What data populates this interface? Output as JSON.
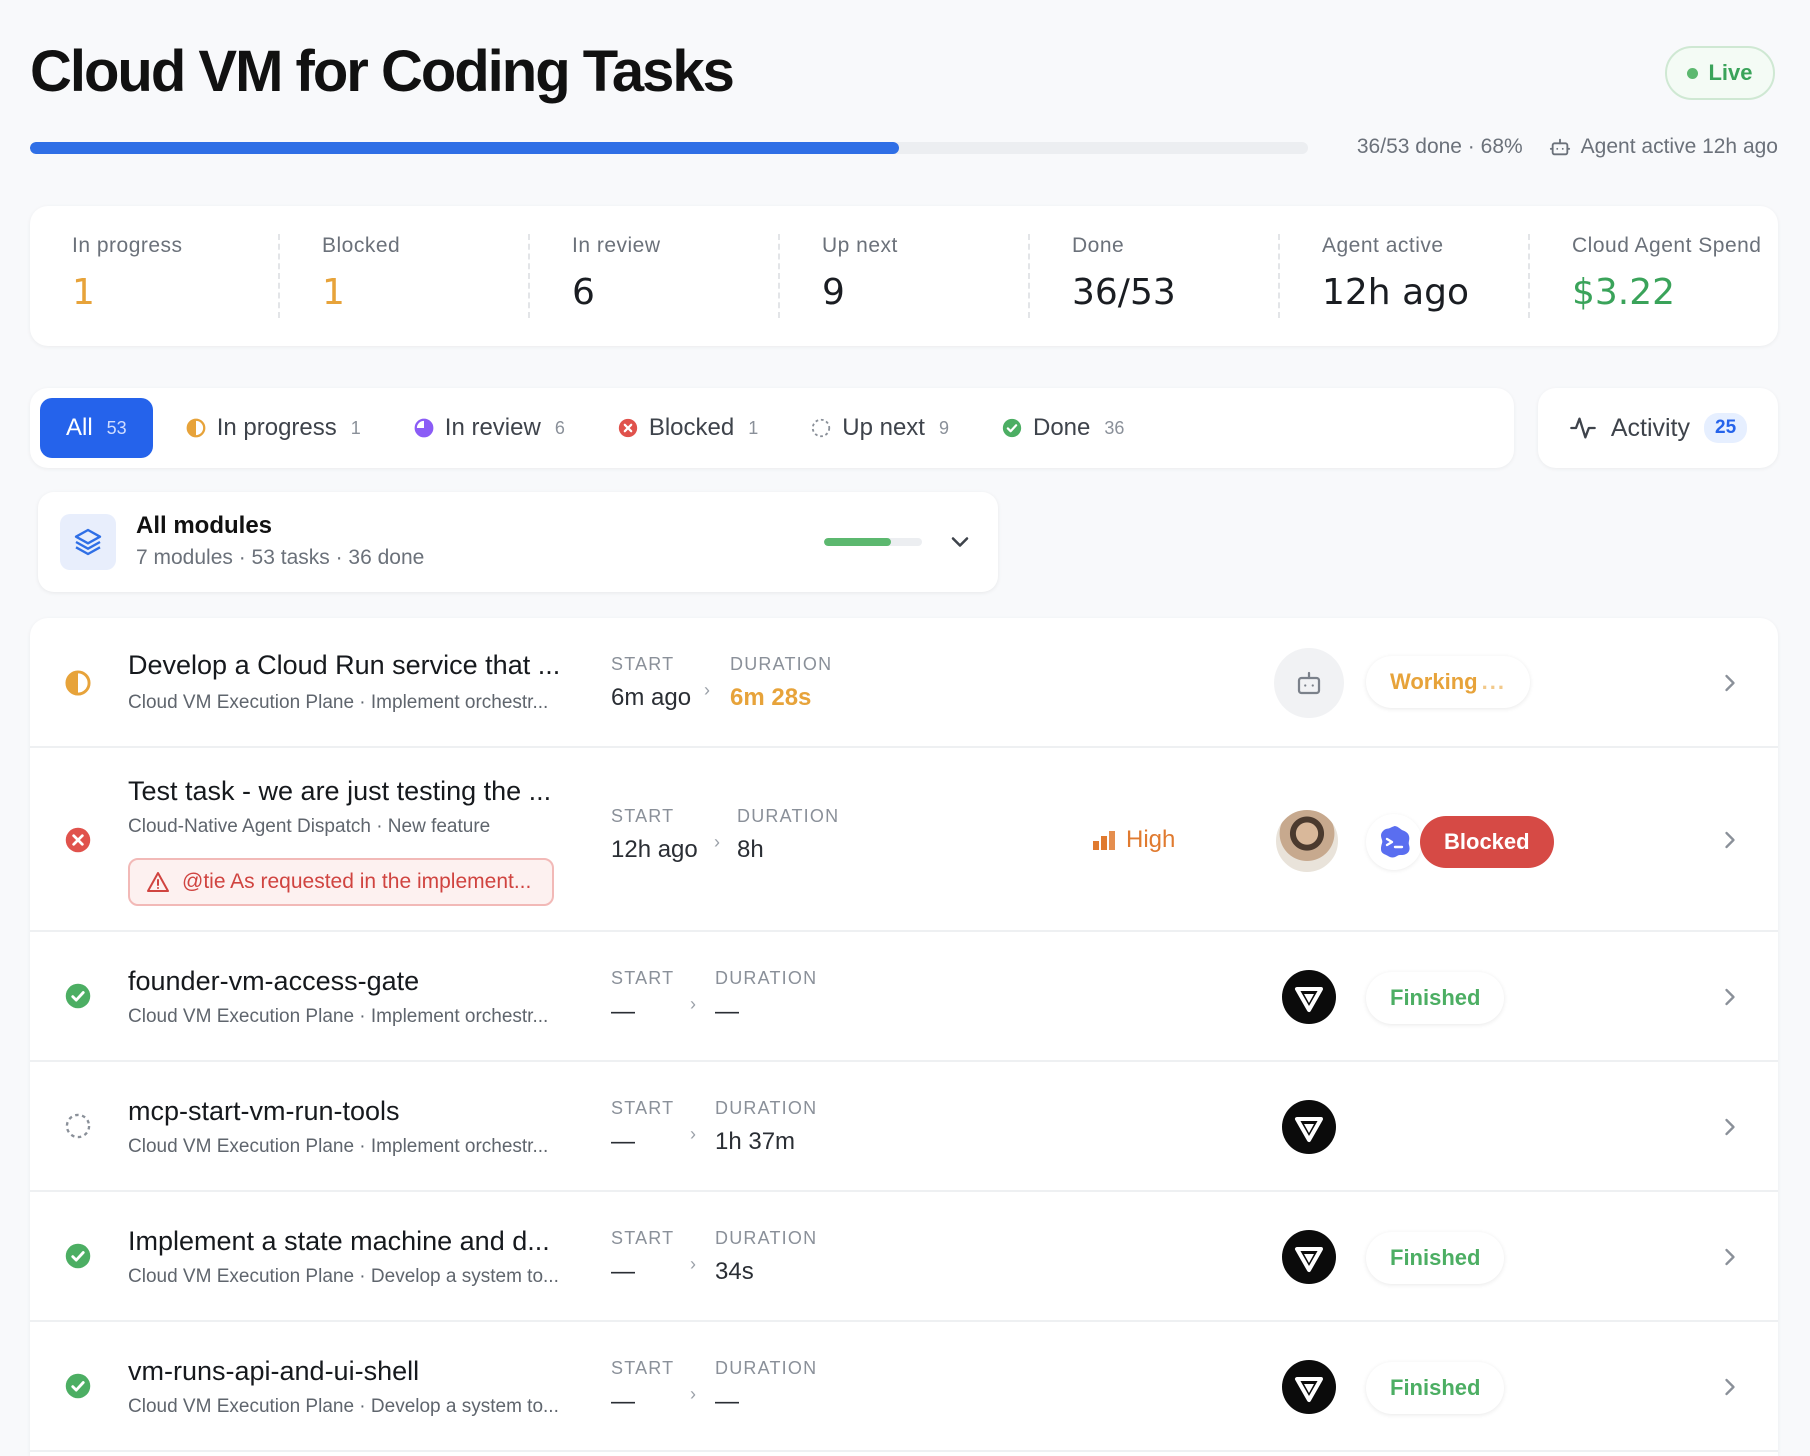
{
  "header": {
    "title": "Cloud VM for Coding Tasks",
    "live_label": "Live",
    "progress_fraction": 0.68,
    "progress_text": "36/53 done · 68%",
    "agent_text": "Agent active 12h ago"
  },
  "stats": [
    {
      "label": "In progress",
      "value": "1",
      "color": "#e7a33a"
    },
    {
      "label": "Blocked",
      "value": "1",
      "color": "#e7a33a"
    },
    {
      "label": "In review",
      "value": "6"
    },
    {
      "label": "Up next",
      "value": "9"
    },
    {
      "label": "Done",
      "value": "36/53"
    },
    {
      "label": "Agent active",
      "value": "12h ago"
    },
    {
      "label": "Cloud Agent Spend",
      "value": "$3.22",
      "color": "#3aa35a"
    }
  ],
  "filters": [
    {
      "label": "All",
      "count": "53",
      "icon": "none"
    },
    {
      "label": "In progress",
      "count": "1",
      "icon": "half-circle-icon"
    },
    {
      "label": "In review",
      "count": "6",
      "icon": "pie-icon"
    },
    {
      "label": "Blocked",
      "count": "1",
      "icon": "x-circle-icon"
    },
    {
      "label": "Up next",
      "count": "9",
      "icon": "dashed-circle-icon"
    },
    {
      "label": "Done",
      "count": "36",
      "icon": "check-circle-icon"
    }
  ],
  "activity": {
    "label": "Activity",
    "count": "25"
  },
  "module": {
    "title": "All modules",
    "subtitle": "7 modules · 53 tasks · 36 done",
    "progress_fraction": 0.68
  },
  "columns": {
    "start": "START",
    "duration": "DURATION"
  },
  "tasks": [
    {
      "title": "Develop a Cloud Run service that ...",
      "subtitle": "Cloud VM Execution Plane · Implement orchestr...",
      "status": "in-progress",
      "start": "6m ago",
      "duration": "6m 28s",
      "pill": "Working",
      "pill_dots": "..."
    },
    {
      "title": "Test task - we are just testing the ...",
      "subtitle": "Cloud-Native Agent Dispatch · New feature",
      "status": "blocked",
      "start": "12h ago",
      "duration": "8h",
      "priority": "High",
      "warning": "@tie As requested in the implement...",
      "pill": "Blocked"
    },
    {
      "title": "founder-vm-access-gate",
      "subtitle": "Cloud VM Execution Plane · Implement orchestr...",
      "status": "done",
      "start": "—",
      "duration": "—",
      "pill": "Finished"
    },
    {
      "title": "mcp-start-vm-run-tools",
      "subtitle": "Cloud VM Execution Plane · Implement orchestr...",
      "status": "up-next",
      "start": "—",
      "duration": "1h 37m",
      "pill": ""
    },
    {
      "title": "Implement a state machine and d...",
      "subtitle": "Cloud VM Execution Plane · Develop a system to...",
      "status": "done",
      "start": "—",
      "duration": "34s",
      "pill": "Finished"
    },
    {
      "title": "vm-runs-api-and-ui-shell",
      "subtitle": "Cloud VM Execution Plane · Develop a system to...",
      "status": "done",
      "start": "—",
      "duration": "—",
      "pill": "Finished"
    }
  ]
}
